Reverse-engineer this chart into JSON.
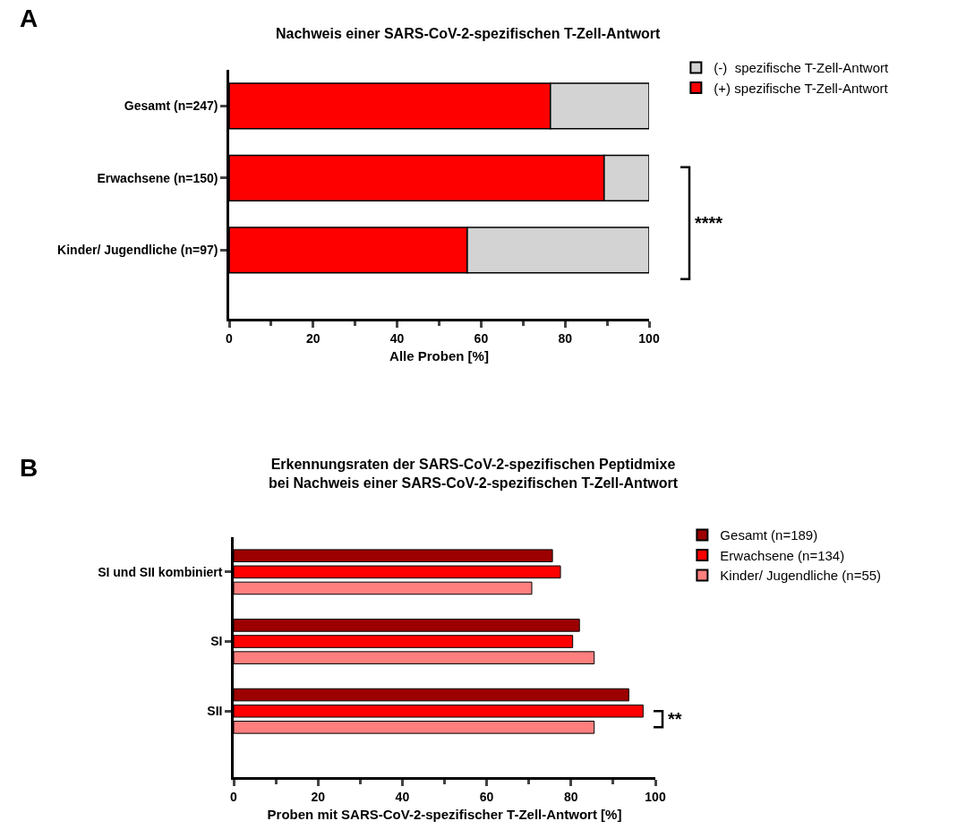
{
  "chart_data": [
    {
      "type": "bar",
      "orientation": "horizontal",
      "stacked": true,
      "title": "Nachweis einer SARS-CoV-2-spezifischen T-Zell-Antwort",
      "xlabel": "Alle Proben [%]",
      "categories": [
        "Gesamt (n=247)",
        "Erwachsene (n=150)",
        "Kinder/ Jugendliche (n=97)"
      ],
      "series": [
        {
          "name": "(+) spezifische T-Zell-Antwort",
          "color": "#ff0000",
          "values": [
            76.5,
            89.3,
            56.7
          ]
        },
        {
          "name": "(-)  spezifische T-Zell-Antwort",
          "color": "#d3d3d3",
          "values": [
            23.5,
            10.7,
            43.3
          ]
        }
      ],
      "xlim": [
        0,
        100
      ],
      "xticks": [
        0,
        {
          "value": 10,
          "label": null
        },
        20,
        {
          "value": 30,
          "label": null
        },
        40,
        {
          "value": 50,
          "label": null
        },
        60,
        {
          "value": 70,
          "label": null
        },
        80,
        {
          "value": 90,
          "label": null
        },
        100
      ],
      "legend": "top right",
      "annotations": [
        "A",
        "****"
      ]
    },
    {
      "type": "bar",
      "orientation": "horizontal",
      "title": "Erkennungsraten der SARS-CoV-2-spezifischen Peptidmixe\nbei Nachweis einer SARS-CoV-2-spezifischen T-Zell-Antwort",
      "xlabel": "Proben mit SARS-CoV-2-spezifischer T-Zell-Antwort [%]",
      "categories": [
        "SI und SII kombiniert",
        "SI",
        "SII"
      ],
      "series": [
        {
          "name": "Gesamt (n=189)",
          "color": "#9c0000",
          "values": [
            75.6,
            82.0,
            93.7
          ]
        },
        {
          "name": "Erwachsene (n=134)",
          "color": "#ff0000",
          "values": [
            77.5,
            80.4,
            97.1
          ]
        },
        {
          "name": "Kinder/ Jugendliche (n=55)",
          "color": "#ff7f7f",
          "values": [
            70.7,
            85.5,
            85.5
          ]
        }
      ],
      "xlim": [
        0,
        100
      ],
      "xticks": [
        0,
        {
          "value": 10,
          "label": null
        },
        20,
        {
          "value": 30,
          "label": null
        },
        40,
        {
          "value": 50,
          "label": null
        },
        60,
        {
          "value": 70,
          "label": null
        },
        80,
        {
          "value": 90,
          "label": null
        },
        100
      ],
      "legend": "top right",
      "annotations": [
        "B",
        "**"
      ]
    }
  ]
}
